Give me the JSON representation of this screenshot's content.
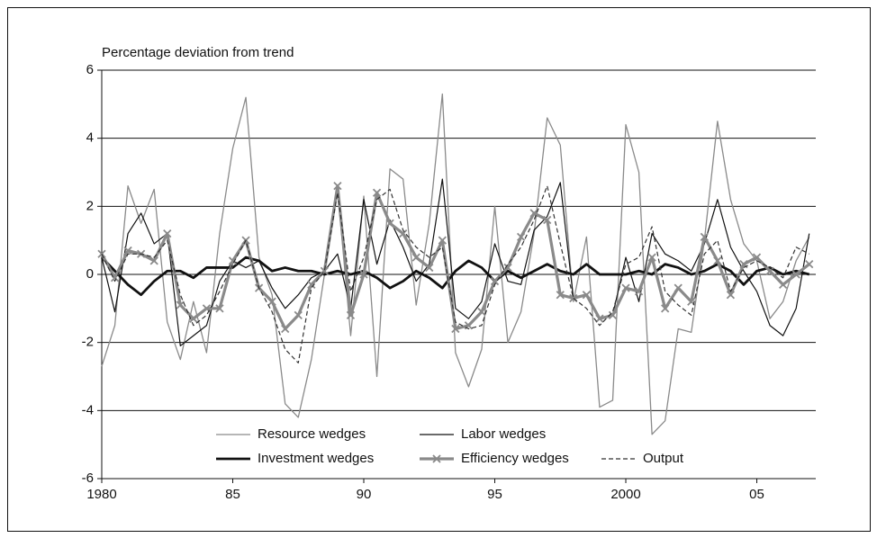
{
  "chart_data": {
    "type": "line",
    "title": "Percentage deviation from trend",
    "x": [
      1980,
      1980.5,
      1981,
      1981.5,
      1982,
      1982.5,
      1983,
      1983.5,
      1984,
      1984.5,
      1985,
      1985.5,
      1986,
      1986.5,
      1987,
      1987.5,
      1988,
      1988.5,
      1989,
      1989.5,
      1990,
      1990.5,
      1991,
      1991.5,
      1992,
      1992.5,
      1993,
      1993.5,
      1994,
      1994.5,
      1995,
      1995.5,
      1996,
      1996.5,
      1997,
      1997.5,
      1998,
      1998.5,
      1999,
      1999.5,
      2000,
      2000.5,
      2001,
      2001.5,
      2002,
      2002.5,
      2003,
      2003.5,
      2004,
      2004.5,
      2005,
      2005.5,
      2006,
      2006.5,
      2007
    ],
    "xlim": [
      1980,
      2007.25
    ],
    "xticks": [
      1980,
      {
        "value": 1985,
        "label": "85"
      },
      {
        "value": 1990,
        "label": "90"
      },
      {
        "value": 1995,
        "label": "95"
      },
      2000,
      {
        "value": 2005,
        "label": "05"
      }
    ],
    "ylim": [
      -6,
      6
    ],
    "yticks": [
      -6,
      -4,
      -2,
      0,
      2,
      4,
      6
    ],
    "grid": true,
    "series": [
      {
        "name": "Resource wedges",
        "color": "#8a8a8a",
        "linewidth": 1.3,
        "values": [
          -2.7,
          -1.5,
          2.6,
          1.5,
          2.5,
          -1.4,
          -2.5,
          -0.8,
          -2.3,
          1.2,
          3.7,
          5.2,
          0.5,
          -0.6,
          -3.8,
          -4.2,
          -2.5,
          0.0,
          2.5,
          -1.8,
          2.3,
          -3.0,
          3.1,
          2.8,
          -0.9,
          1.5,
          5.3,
          -2.3,
          -3.3,
          -2.2,
          2.0,
          -2.0,
          -1.1,
          1.2,
          4.6,
          3.8,
          -0.8,
          1.1,
          -3.9,
          -3.7,
          4.4,
          3.0,
          -4.7,
          -4.3,
          -1.6,
          -1.7,
          1.0,
          4.5,
          2.2,
          0.9,
          0.4,
          -1.3,
          -0.8,
          0.4,
          1.1
        ]
      },
      {
        "name": "Labor wedges",
        "color": "#111111",
        "linewidth": 1.2,
        "values": [
          0.5,
          -1.1,
          1.2,
          1.8,
          0.9,
          1.2,
          -2.1,
          -1.8,
          -1.5,
          -0.2,
          0.4,
          0.2,
          0.4,
          -0.4,
          -1.0,
          -0.6,
          -0.1,
          0.1,
          0.6,
          -1.0,
          2.2,
          0.3,
          1.6,
          0.8,
          -0.2,
          0.3,
          2.8,
          -1.0,
          -1.3,
          -0.8,
          0.9,
          -0.2,
          -0.3,
          1.3,
          1.7,
          2.7,
          -0.7,
          -0.6,
          -1.3,
          -1.2,
          0.5,
          -0.8,
          1.2,
          0.6,
          0.4,
          0.1,
          0.9,
          2.2,
          0.8,
          0.1,
          -0.5,
          -1.5,
          -1.8,
          -1.0,
          1.2
        ]
      },
      {
        "name": "Investment wedges",
        "color": "#111111",
        "linewidth": 2.8,
        "values": [
          0.5,
          0.1,
          -0.3,
          -0.6,
          -0.2,
          0.1,
          0.1,
          -0.1,
          0.2,
          0.2,
          0.2,
          0.5,
          0.4,
          0.1,
          0.2,
          0.1,
          0.1,
          0.0,
          0.1,
          0.0,
          0.1,
          -0.1,
          -0.4,
          -0.2,
          0.1,
          -0.1,
          -0.4,
          0.1,
          0.4,
          0.2,
          -0.2,
          0.1,
          -0.1,
          0.1,
          0.3,
          0.1,
          0.0,
          0.3,
          0.0,
          0.0,
          0.0,
          0.1,
          0.0,
          0.3,
          0.2,
          0.0,
          0.1,
          0.3,
          0.1,
          -0.3,
          0.1,
          0.2,
          0.0,
          0.1,
          0.0
        ]
      },
      {
        "name": "Efficiency wedges",
        "color": "#8a8a8a",
        "linewidth": 3.2,
        "marker": "x",
        "values": [
          0.6,
          -0.1,
          0.7,
          0.6,
          0.4,
          1.2,
          -0.9,
          -1.3,
          -1.0,
          -1.0,
          0.4,
          1.0,
          -0.4,
          -0.8,
          -1.6,
          -1.2,
          -0.3,
          0.1,
          2.6,
          -1.2,
          0.0,
          2.4,
          1.5,
          1.2,
          0.5,
          0.2,
          1.0,
          -1.6,
          -1.5,
          -1.1,
          -0.2,
          0.2,
          1.1,
          1.8,
          1.6,
          -0.6,
          -0.7,
          -0.6,
          -1.3,
          -1.2,
          -0.4,
          -0.5,
          0.5,
          -1.0,
          -0.4,
          -0.8,
          1.1,
          0.4,
          -0.6,
          0.3,
          0.5,
          0.1,
          -0.3,
          0.0,
          0.3
        ]
      },
      {
        "name": "Output",
        "color": "#333333",
        "linewidth": 1.2,
        "dashed": true,
        "values": [
          0.6,
          -0.2,
          0.6,
          0.6,
          0.5,
          1.0,
          -0.6,
          -1.5,
          -1.2,
          -0.5,
          0.3,
          1.0,
          -0.4,
          -1.1,
          -2.2,
          -2.6,
          -0.4,
          0.1,
          2.4,
          -0.5,
          0.5,
          2.2,
          2.5,
          1.3,
          0.8,
          0.5,
          0.8,
          -1.4,
          -1.6,
          -1.5,
          -0.3,
          0.3,
          0.8,
          1.6,
          2.6,
          0.9,
          -0.7,
          -1.0,
          -1.5,
          -1.1,
          0.3,
          0.5,
          1.4,
          -0.5,
          -0.9,
          -1.2,
          0.6,
          1.0,
          -0.5,
          0.2,
          0.4,
          0.2,
          -0.1,
          0.8,
          0.6
        ]
      }
    ]
  }
}
